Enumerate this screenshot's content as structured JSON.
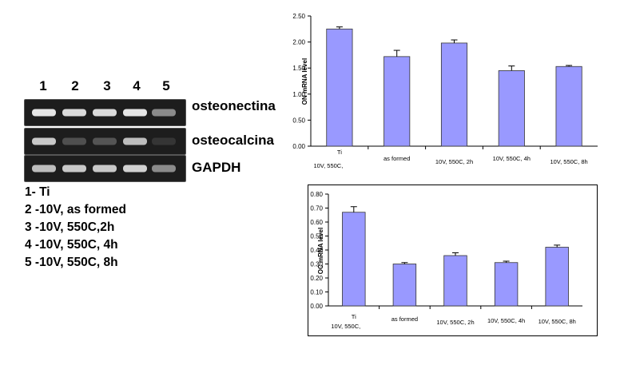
{
  "gel": {
    "lanes": [
      "1",
      "2",
      "3",
      "4",
      "5"
    ],
    "genes": [
      {
        "label": "osteonectina",
        "band_intensity": [
          1.0,
          0.95,
          0.95,
          1.0,
          0.55
        ]
      },
      {
        "label": "osteocalcina",
        "band_intensity": [
          0.85,
          0.25,
          0.28,
          0.8,
          0.12
        ]
      },
      {
        "label": "GAPDH",
        "band_intensity": [
          0.8,
          0.85,
          0.85,
          0.9,
          0.55
        ]
      }
    ],
    "band_color": "#e6e6e6",
    "background_color": "#1d1d1d"
  },
  "legend": {
    "items": [
      "1- Ti",
      "2 -10V, as formed",
      "3 -10V, 550C,2h",
      "4 -10V, 550C, 4h",
      "5 -10V, 550C, 8h"
    ]
  },
  "chart_data": [
    {
      "type": "bar",
      "title": "",
      "xlabel": "",
      "ylabel": "ON mRNA level",
      "categories": [
        "Ti",
        "as formed",
        "10V, 550C, 2h",
        "10V, 550C, 4h",
        "10V, 550C, 8h"
      ],
      "category_prefix": [
        "10V, 550C,",
        "",
        "",
        "",
        ""
      ],
      "values": [
        2.25,
        1.72,
        1.98,
        1.45,
        1.53
      ],
      "errors": [
        0.04,
        0.12,
        0.06,
        0.09,
        0.02
      ],
      "ylim": [
        0,
        2.5
      ],
      "yticks": [
        "0.00",
        "0.50",
        "1.00",
        "1.50",
        "2.00",
        "2.50"
      ],
      "ytick_values": [
        0,
        0.5,
        1.0,
        1.5,
        2.0,
        2.5
      ],
      "bar_color": "#9999ff",
      "grid": false,
      "legend": "none",
      "framed": false
    },
    {
      "type": "bar",
      "title": "",
      "xlabel": "",
      "ylabel": "OC mRNA level",
      "categories": [
        "Ti",
        "as formed",
        "10V, 550C, 2h",
        "10V, 550C, 4h",
        "10V, 550C, 8h"
      ],
      "category_prefix": [
        "10V, 550C,",
        "",
        "",
        "",
        ""
      ],
      "values": [
        0.67,
        0.3,
        0.36,
        0.31,
        0.42
      ],
      "errors": [
        0.04,
        0.01,
        0.02,
        0.01,
        0.015
      ],
      "ylim": [
        0,
        0.8
      ],
      "yticks": [
        "0.00",
        "0.10",
        "0.20",
        "0.30",
        "0.40",
        "0.50",
        "0.60",
        "0.70",
        "0.80"
      ],
      "ytick_values": [
        0,
        0.1,
        0.2,
        0.3,
        0.4,
        0.5,
        0.6,
        0.7,
        0.8
      ],
      "bar_color": "#9999ff",
      "grid": false,
      "legend": "none",
      "framed": true
    }
  ]
}
